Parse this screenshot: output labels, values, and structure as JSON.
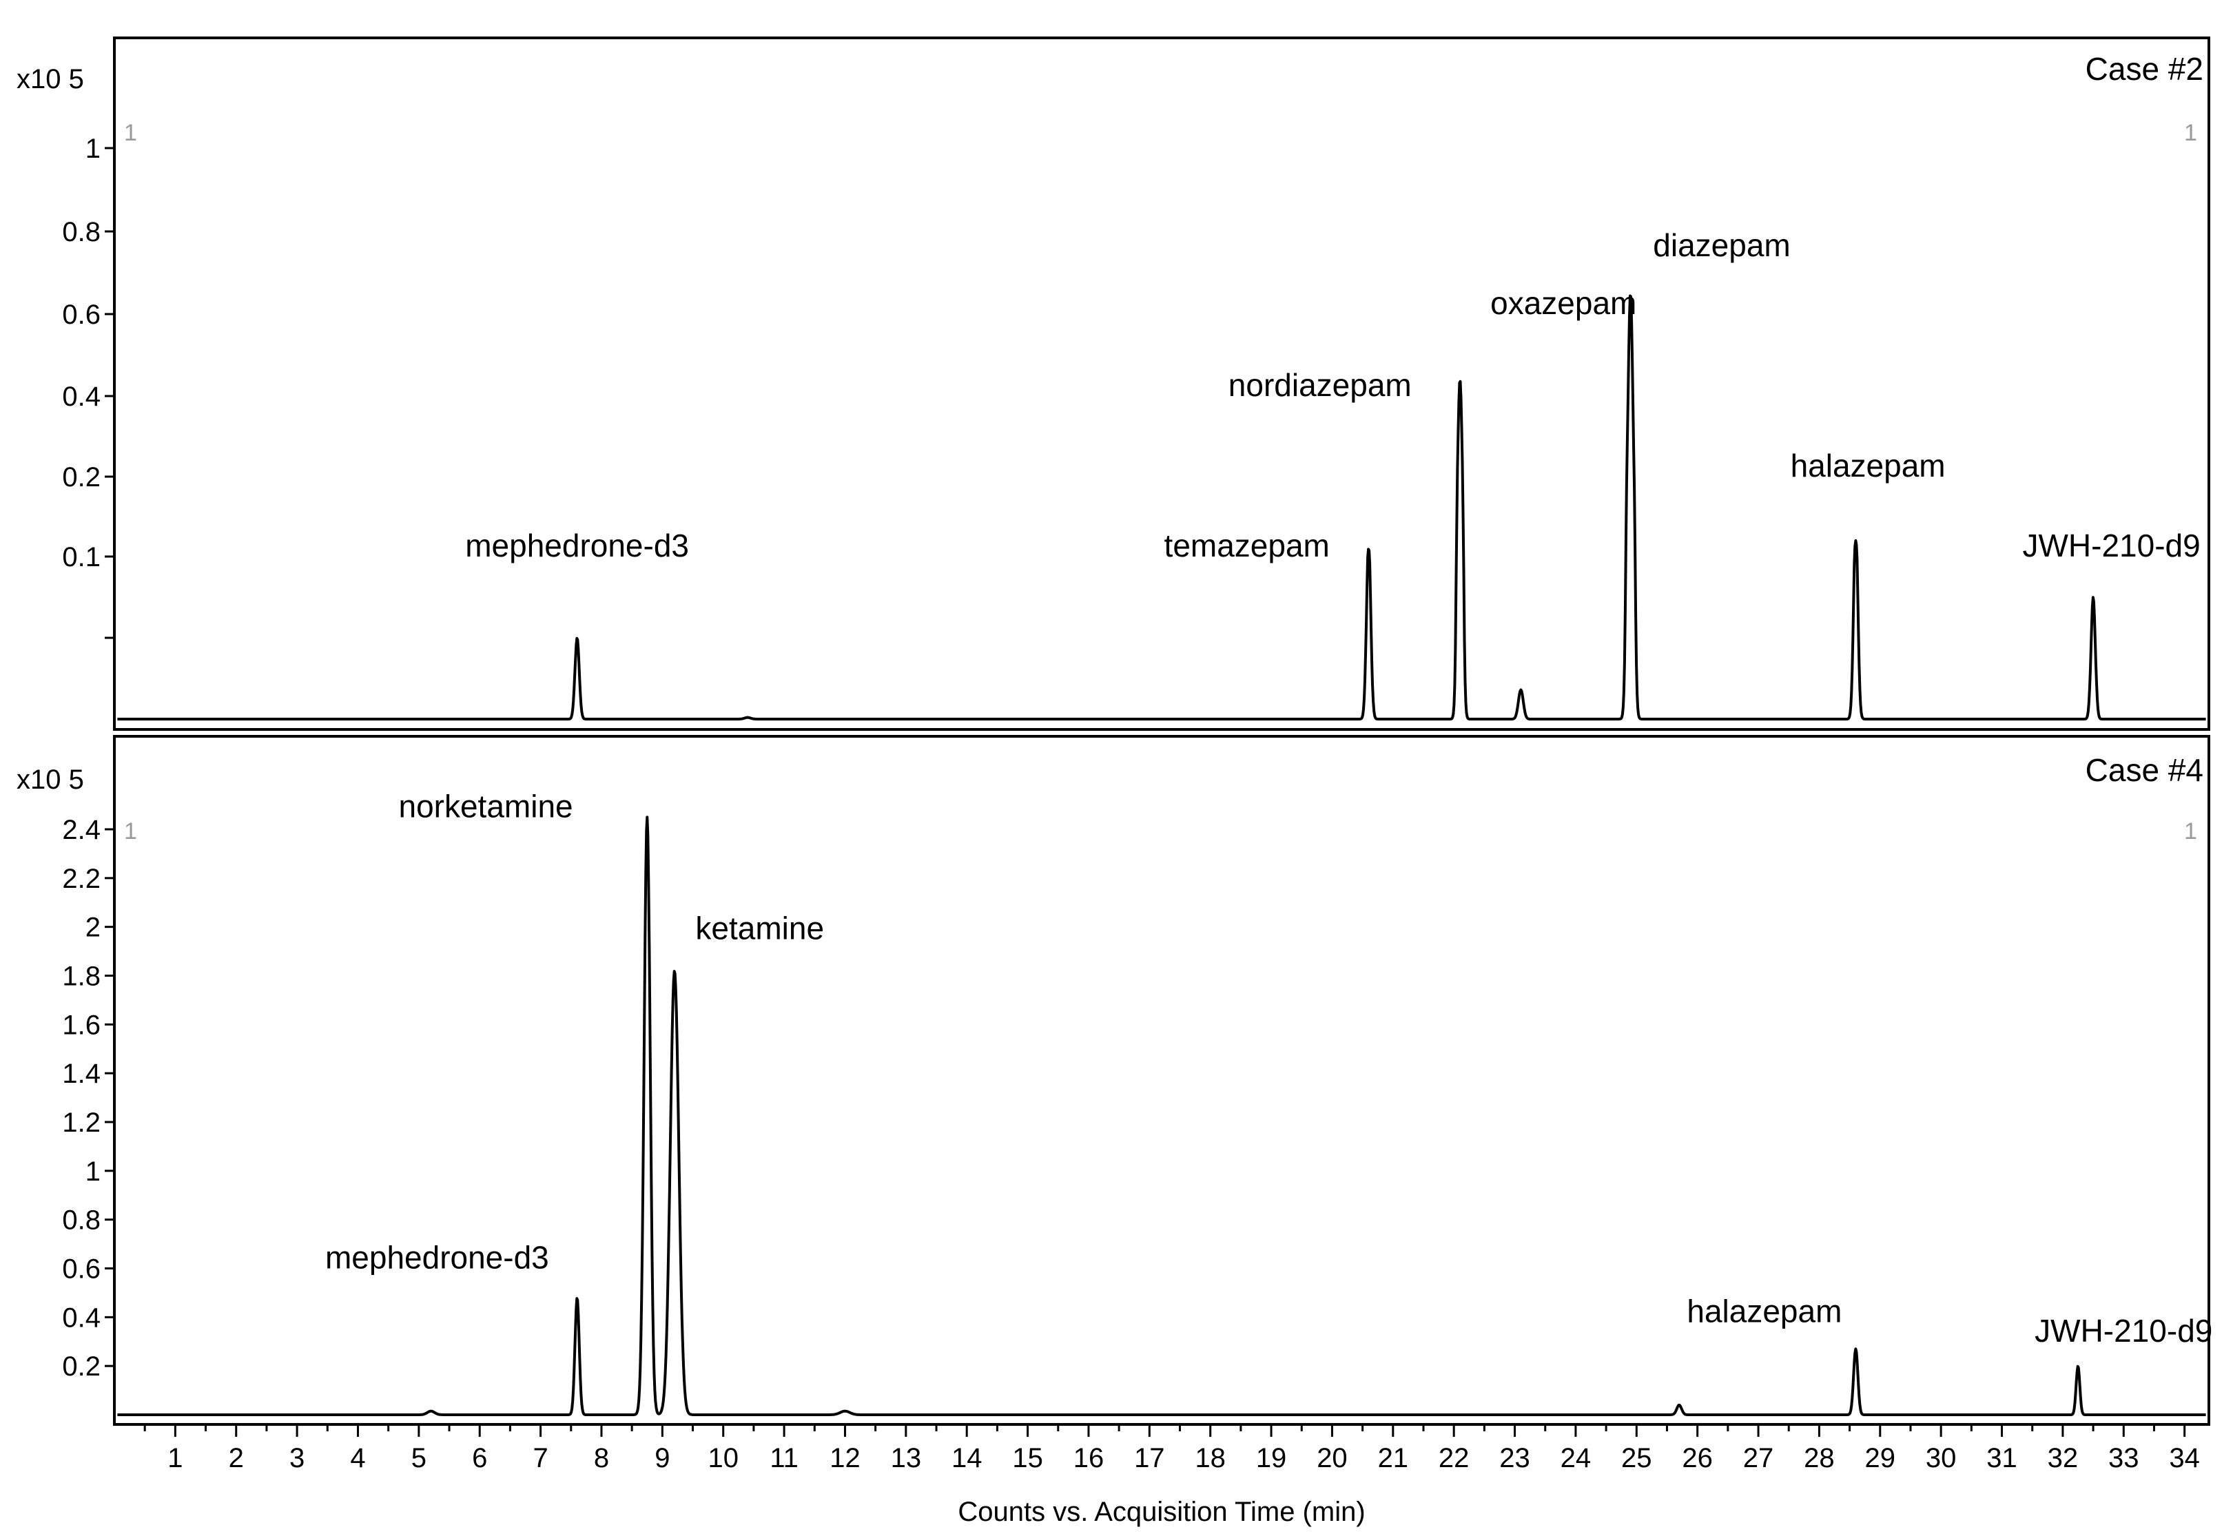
{
  "chart_data": [
    {
      "type": "line",
      "title": "Case #2",
      "scale_label": "x10 5",
      "corner_left": "1",
      "corner_right": "1",
      "x_range": [
        0,
        34.4
      ],
      "y_ticks": [
        {
          "label": "1",
          "value": 1.0
        },
        {
          "label": "0.8",
          "value": 0.8
        },
        {
          "label": "0.6",
          "value": 0.6
        },
        {
          "label": "0.4",
          "value": 0.4
        },
        {
          "label": "0.2",
          "value": 0.2
        },
        {
          "label": "0.1",
          "value": 0.1
        }
      ],
      "y_tick_positions_unlabeled": [
        0.05
      ],
      "peaks": [
        {
          "x": 7.6,
          "y": 0.05,
          "w": 0.035
        },
        {
          "x": 10.4,
          "y": 0.001,
          "w": 0.05
        },
        {
          "x": 20.6,
          "y": 0.11,
          "w": 0.035
        },
        {
          "x": 22.1,
          "y": 0.44,
          "w": 0.035
        },
        {
          "x": 23.1,
          "y": 0.018,
          "w": 0.04
        },
        {
          "x": 24.9,
          "y": 0.65,
          "w": 0.04
        },
        {
          "x": 28.6,
          "y": 0.12,
          "w": 0.035
        },
        {
          "x": 32.5,
          "y": 0.075,
          "w": 0.035
        }
      ],
      "annotations": [
        {
          "label": "mephedrone-d3",
          "x": 7.6,
          "y": 0.1
        },
        {
          "label": "temazepam",
          "x": 18.6,
          "y": 0.1
        },
        {
          "label": "nordiazepam",
          "x": 19.8,
          "y": 0.4
        },
        {
          "label": "oxazepam",
          "x": 23.8,
          "y": 0.6
        },
        {
          "label": "diazepam",
          "x": 26.4,
          "y": 0.74
        },
        {
          "label": "halazepam",
          "x": 28.8,
          "y": 0.2
        },
        {
          "label": "JWH-210-d9",
          "x": 32.8,
          "y": 0.1
        }
      ]
    },
    {
      "type": "line",
      "title": "Case #4",
      "scale_label": "x10 5",
      "corner_left": "1",
      "corner_right": "1",
      "x_range": [
        0,
        34.4
      ],
      "y_ticks": [
        {
          "label": "2.4",
          "value": 2.4
        },
        {
          "label": "2.2",
          "value": 2.2
        },
        {
          "label": "2",
          "value": 2.0
        },
        {
          "label": "1.8",
          "value": 1.8
        },
        {
          "label": "1.6",
          "value": 1.6
        },
        {
          "label": "1.4",
          "value": 1.4
        },
        {
          "label": "1.2",
          "value": 1.2
        },
        {
          "label": "1",
          "value": 1.0
        },
        {
          "label": "0.8",
          "value": 0.8
        },
        {
          "label": "0.6",
          "value": 0.6
        },
        {
          "label": "0.4",
          "value": 0.4
        },
        {
          "label": "0.2",
          "value": 0.2
        }
      ],
      "peaks": [
        {
          "x": 5.2,
          "y": 0.015,
          "w": 0.06
        },
        {
          "x": 7.6,
          "y": 0.48,
          "w": 0.035
        },
        {
          "x": 8.75,
          "y": 2.45,
          "w": 0.05
        },
        {
          "x": 9.2,
          "y": 1.82,
          "w": 0.07
        },
        {
          "x": 12.0,
          "y": 0.015,
          "w": 0.08
        },
        {
          "x": 25.7,
          "y": 0.04,
          "w": 0.04
        },
        {
          "x": 28.6,
          "y": 0.27,
          "w": 0.035
        },
        {
          "x": 32.25,
          "y": 0.2,
          "w": 0.03
        }
      ],
      "annotations": [
        {
          "label": "norketamine",
          "x": 6.1,
          "y": 2.45
        },
        {
          "label": "ketamine",
          "x": 10.6,
          "y": 1.95
        },
        {
          "label": "mephedrone-d3",
          "x": 5.3,
          "y": 0.6
        },
        {
          "label": "halazepam",
          "x": 27.1,
          "y": 0.38
        },
        {
          "label": "JWH-210-d9",
          "x": 33.0,
          "y": 0.3
        }
      ]
    }
  ],
  "x_axis": {
    "label": "Counts vs. Acquisition Time (min)",
    "ticks": [
      "1",
      "2",
      "3",
      "4",
      "5",
      "6",
      "7",
      "8",
      "9",
      "10",
      "11",
      "12",
      "13",
      "14",
      "15",
      "16",
      "17",
      "18",
      "19",
      "20",
      "21",
      "22",
      "23",
      "24",
      "25",
      "26",
      "27",
      "28",
      "29",
      "30",
      "31",
      "32",
      "33",
      "34"
    ]
  }
}
